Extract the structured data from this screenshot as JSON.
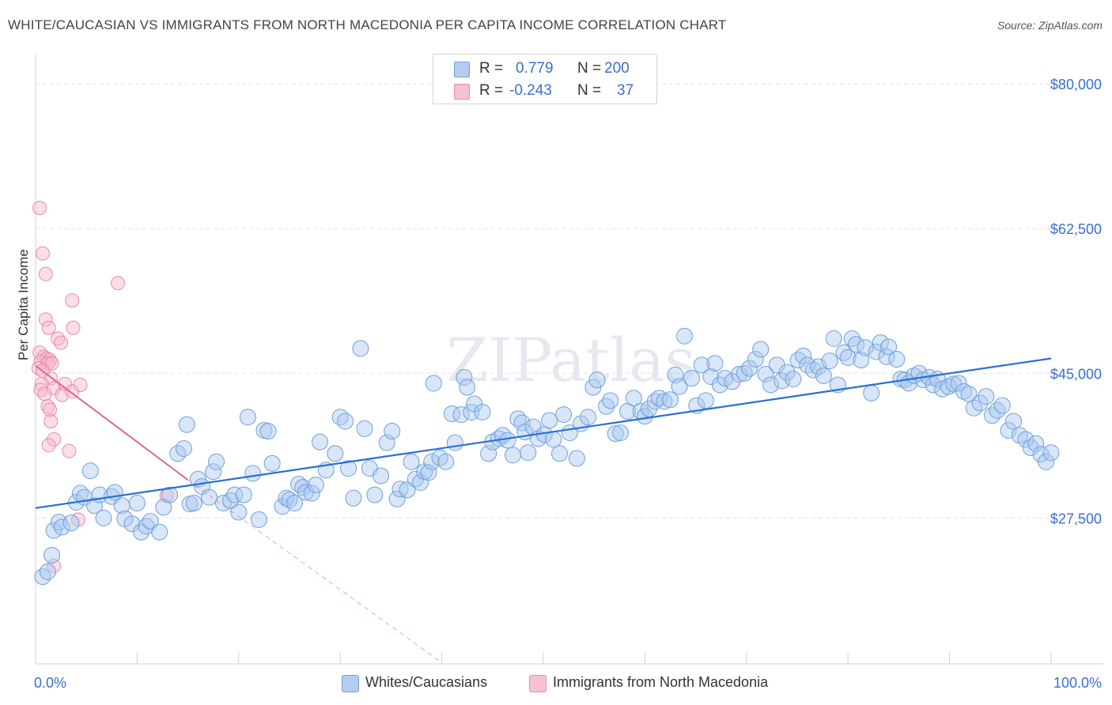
{
  "title": "WHITE/CAUCASIAN VS IMMIGRANTS FROM NORTH MACEDONIA PER CAPITA INCOME CORRELATION CHART",
  "source": "Source: ZipAtlas.com",
  "legend": {
    "rows": [
      {
        "r_label": "R =",
        "r_value": "0.779",
        "n_label": "N =",
        "n_value": "200"
      },
      {
        "r_label": "R =",
        "r_value": "-0.243",
        "n_label": "N =",
        "n_value": "37"
      }
    ]
  },
  "bottom_legend": [
    "Whites/Caucasians",
    "Immigrants from North Macedonia"
  ],
  "colors": {
    "blue_fill": "#a9c8f0",
    "blue_stroke": "#6f9fdc",
    "blue_line": "#2a6fd6",
    "pink_fill": "#f6b6c9",
    "pink_stroke": "#e98aa8",
    "pink_line": "#e0648f",
    "axis_text": "#3a6fd1",
    "grid": "#e3e3e3"
  },
  "chart_data": {
    "type": "scatter",
    "title": "WHITE/CAUCASIAN VS IMMIGRANTS FROM NORTH MACEDONIA PER CAPITA INCOME CORRELATION CHART",
    "xlabel": "",
    "ylabel": "Per Capita Income",
    "xlim": [
      0,
      100
    ],
    "ylim": [
      11000,
      82500
    ],
    "x_tick_labels": [
      "0.0%",
      "100.0%"
    ],
    "y_ticks": [
      27500,
      45000,
      62500,
      80000
    ],
    "y_tick_labels": [
      "$27,500",
      "$45,000",
      "$62,500",
      "$80,000"
    ],
    "watermark": "ZIPatlas",
    "series": [
      {
        "name": "Whites/Caucasians",
        "trend": {
          "x": [
            0,
            100
          ],
          "y": [
            28700,
            46800
          ]
        },
        "points": [
          [
            0.7,
            20400
          ],
          [
            1.2,
            21000
          ],
          [
            1.6,
            23000
          ],
          [
            1.8,
            26000
          ],
          [
            2.3,
            27000
          ],
          [
            2.6,
            26400
          ],
          [
            3.5,
            26900
          ],
          [
            4.0,
            29400
          ],
          [
            4.4,
            30500
          ],
          [
            4.8,
            30000
          ],
          [
            5.4,
            33200
          ],
          [
            5.8,
            29000
          ],
          [
            6.3,
            30300
          ],
          [
            6.7,
            27500
          ],
          [
            7.5,
            30100
          ],
          [
            7.8,
            30600
          ],
          [
            8.5,
            29000
          ],
          [
            8.8,
            27400
          ],
          [
            9.5,
            26800
          ],
          [
            10.0,
            29300
          ],
          [
            10.4,
            25800
          ],
          [
            10.9,
            26500
          ],
          [
            11.3,
            27100
          ],
          [
            12.2,
            25800
          ],
          [
            12.6,
            28800
          ],
          [
            13.2,
            30300
          ],
          [
            14.0,
            35300
          ],
          [
            14.6,
            35900
          ],
          [
            14.9,
            38800
          ],
          [
            15.2,
            29200
          ],
          [
            15.6,
            29300
          ],
          [
            16.0,
            32200
          ],
          [
            16.4,
            31300
          ],
          [
            17.1,
            30000
          ],
          [
            17.5,
            33100
          ],
          [
            17.8,
            34300
          ],
          [
            18.5,
            29300
          ],
          [
            19.2,
            29600
          ],
          [
            19.6,
            30300
          ],
          [
            20.0,
            28200
          ],
          [
            20.5,
            30300
          ],
          [
            20.9,
            39700
          ],
          [
            21.4,
            32900
          ],
          [
            22.0,
            27300
          ],
          [
            22.5,
            38100
          ],
          [
            22.9,
            38000
          ],
          [
            23.3,
            34100
          ],
          [
            24.3,
            28900
          ],
          [
            24.7,
            29900
          ],
          [
            25.0,
            29700
          ],
          [
            25.5,
            29300
          ],
          [
            25.9,
            31600
          ],
          [
            26.3,
            31200
          ],
          [
            26.6,
            30600
          ],
          [
            27.2,
            30500
          ],
          [
            27.6,
            31500
          ],
          [
            28.0,
            36700
          ],
          [
            28.6,
            33300
          ],
          [
            29.5,
            35300
          ],
          [
            30.0,
            39700
          ],
          [
            30.5,
            39200
          ],
          [
            30.8,
            33500
          ],
          [
            31.3,
            29900
          ],
          [
            32.0,
            48000
          ],
          [
            32.4,
            38300
          ],
          [
            32.9,
            33500
          ],
          [
            33.4,
            30300
          ],
          [
            34.0,
            32600
          ],
          [
            34.6,
            36600
          ],
          [
            35.1,
            38000
          ],
          [
            35.6,
            29800
          ],
          [
            35.9,
            31000
          ],
          [
            36.6,
            30900
          ],
          [
            37.0,
            34300
          ],
          [
            37.4,
            32200
          ],
          [
            37.9,
            31800
          ],
          [
            38.3,
            33100
          ],
          [
            38.7,
            33000
          ],
          [
            39.0,
            34300
          ],
          [
            39.2,
            43800
          ],
          [
            39.8,
            34800
          ],
          [
            40.4,
            34300
          ],
          [
            41.0,
            40100
          ],
          [
            41.3,
            36600
          ],
          [
            41.9,
            40000
          ],
          [
            42.2,
            44500
          ],
          [
            42.5,
            43300
          ],
          [
            42.9,
            40300
          ],
          [
            43.2,
            41300
          ],
          [
            44.0,
            40300
          ],
          [
            44.6,
            35300
          ],
          [
            45.0,
            36700
          ],
          [
            45.6,
            37100
          ],
          [
            46.0,
            37500
          ],
          [
            46.5,
            36900
          ],
          [
            47.0,
            35100
          ],
          [
            47.5,
            39500
          ],
          [
            47.9,
            39000
          ],
          [
            48.2,
            37900
          ],
          [
            48.5,
            35400
          ],
          [
            49.0,
            38500
          ],
          [
            49.5,
            37100
          ],
          [
            50.1,
            37600
          ],
          [
            50.6,
            39300
          ],
          [
            51.0,
            37000
          ],
          [
            51.6,
            35300
          ],
          [
            52.0,
            40000
          ],
          [
            52.6,
            37800
          ],
          [
            53.3,
            34700
          ],
          [
            53.7,
            38900
          ],
          [
            54.4,
            39700
          ],
          [
            54.9,
            43300
          ],
          [
            55.3,
            44200
          ],
          [
            56.2,
            41000
          ],
          [
            56.6,
            41700
          ],
          [
            57.1,
            37700
          ],
          [
            57.6,
            37800
          ],
          [
            58.3,
            40400
          ],
          [
            58.9,
            42000
          ],
          [
            59.6,
            40400
          ],
          [
            60.0,
            39800
          ],
          [
            60.4,
            40700
          ],
          [
            61.0,
            41600
          ],
          [
            61.4,
            42000
          ],
          [
            61.9,
            41600
          ],
          [
            62.5,
            41800
          ],
          [
            63.0,
            44800
          ],
          [
            63.4,
            43400
          ],
          [
            63.9,
            49500
          ],
          [
            64.6,
            44400
          ],
          [
            65.1,
            41100
          ],
          [
            65.6,
            46000
          ],
          [
            66.0,
            41700
          ],
          [
            66.5,
            44600
          ],
          [
            66.9,
            46200
          ],
          [
            67.4,
            43600
          ],
          [
            67.9,
            44400
          ],
          [
            68.6,
            44000
          ],
          [
            69.3,
            44900
          ],
          [
            69.8,
            45000
          ],
          [
            70.3,
            45600
          ],
          [
            70.9,
            46700
          ],
          [
            71.4,
            47900
          ],
          [
            71.9,
            44900
          ],
          [
            72.4,
            43600
          ],
          [
            73.0,
            46000
          ],
          [
            73.5,
            44100
          ],
          [
            74.0,
            45100
          ],
          [
            74.6,
            44300
          ],
          [
            75.1,
            46600
          ],
          [
            75.6,
            47100
          ],
          [
            76.0,
            46000
          ],
          [
            76.6,
            45400
          ],
          [
            77.1,
            45800
          ],
          [
            77.6,
            44700
          ],
          [
            78.2,
            46500
          ],
          [
            78.6,
            49200
          ],
          [
            79.0,
            43600
          ],
          [
            79.6,
            47500
          ],
          [
            80.0,
            46900
          ],
          [
            80.4,
            49200
          ],
          [
            80.8,
            48500
          ],
          [
            81.3,
            46600
          ],
          [
            81.7,
            48100
          ],
          [
            82.3,
            42600
          ],
          [
            82.8,
            47600
          ],
          [
            83.2,
            48700
          ],
          [
            83.8,
            47000
          ],
          [
            84.0,
            48200
          ],
          [
            84.8,
            46700
          ],
          [
            85.2,
            44300
          ],
          [
            85.6,
            44200
          ],
          [
            86.0,
            43800
          ],
          [
            86.5,
            44700
          ],
          [
            87.0,
            45000
          ],
          [
            87.4,
            44200
          ],
          [
            88.0,
            44500
          ],
          [
            88.4,
            43600
          ],
          [
            88.8,
            44300
          ],
          [
            89.3,
            43100
          ],
          [
            89.9,
            43400
          ],
          [
            90.4,
            43700
          ],
          [
            90.9,
            43800
          ],
          [
            91.4,
            42800
          ],
          [
            91.9,
            42500
          ],
          [
            92.4,
            40800
          ],
          [
            93.0,
            41400
          ],
          [
            93.6,
            42200
          ],
          [
            94.2,
            39900
          ],
          [
            94.7,
            40500
          ],
          [
            95.2,
            41100
          ],
          [
            95.8,
            38100
          ],
          [
            96.3,
            39200
          ],
          [
            96.9,
            37500
          ],
          [
            97.5,
            37000
          ],
          [
            98.0,
            36000
          ],
          [
            98.5,
            36500
          ],
          [
            99.0,
            35200
          ],
          [
            99.5,
            34300
          ],
          [
            100.0,
            35400
          ]
        ]
      },
      {
        "name": "Immigrants from North Macedonia",
        "trend": {
          "x": [
            0,
            15
          ],
          "y": [
            45900,
            32100
          ]
        },
        "trend_dashed": {
          "x": [
            15,
            40
          ],
          "y": [
            32100,
            10000
          ]
        },
        "points": [
          [
            0.4,
            65000
          ],
          [
            0.7,
            59500
          ],
          [
            1.0,
            57000
          ],
          [
            1.0,
            51500
          ],
          [
            1.3,
            50500
          ],
          [
            0.4,
            47500
          ],
          [
            0.8,
            47000
          ],
          [
            1.1,
            46800
          ],
          [
            1.4,
            46600
          ],
          [
            0.5,
            46400
          ],
          [
            1.2,
            46200
          ],
          [
            1.6,
            46200
          ],
          [
            0.3,
            45600
          ],
          [
            0.7,
            45300
          ],
          [
            1.5,
            44400
          ],
          [
            0.6,
            43700
          ],
          [
            1.8,
            43200
          ],
          [
            0.5,
            43000
          ],
          [
            0.9,
            42500
          ],
          [
            1.2,
            41000
          ],
          [
            1.4,
            40600
          ],
          [
            1.5,
            39200
          ],
          [
            1.8,
            37000
          ],
          [
            1.3,
            36300
          ],
          [
            2.2,
            49200
          ],
          [
            2.5,
            48700
          ],
          [
            2.9,
            43700
          ],
          [
            2.6,
            42400
          ],
          [
            3.3,
            35600
          ],
          [
            3.6,
            53800
          ],
          [
            3.7,
            50500
          ],
          [
            3.6,
            42800
          ],
          [
            4.4,
            43600
          ],
          [
            4.2,
            27300
          ],
          [
            8.1,
            55900
          ],
          [
            12.9,
            30200
          ],
          [
            1.8,
            21700
          ]
        ]
      }
    ]
  }
}
